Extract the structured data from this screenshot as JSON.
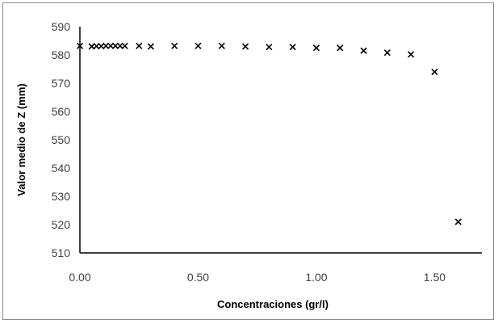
{
  "chart_data": {
    "type": "scatter",
    "title": "",
    "xlabel": "Concentraciones (gr/l)",
    "ylabel": "Valor medio de Z (mm)",
    "xlim": [
      0,
      1.7
    ],
    "ylim": [
      510,
      590
    ],
    "xticks": [
      "0.00",
      "0.50",
      "1.00",
      "1.50"
    ],
    "xtick_values": [
      0,
      0.5,
      1.0,
      1.5
    ],
    "yticks": [
      "510",
      "520",
      "530",
      "540",
      "550",
      "560",
      "570",
      "580",
      "590"
    ],
    "ytick_values": [
      510,
      520,
      530,
      540,
      550,
      560,
      570,
      580,
      590
    ],
    "marker": "x",
    "grid": false,
    "legend": "none",
    "colors": {
      "marker": "#000000",
      "axis": "#000000",
      "frame": "#8c8c8c"
    },
    "series": [
      {
        "x": [
          0.0,
          0.05,
          0.07,
          0.09,
          0.11,
          0.13,
          0.15,
          0.17,
          0.19,
          0.25,
          0.3,
          0.4,
          0.5,
          0.6,
          0.7,
          0.8,
          0.9,
          1.0,
          1.1,
          1.2,
          1.3,
          1.4,
          1.5,
          1.6
        ],
        "y": [
          583.2,
          583.0,
          583.1,
          583.1,
          583.2,
          583.2,
          583.2,
          583.2,
          583.2,
          583.2,
          583.0,
          583.2,
          583.2,
          583.2,
          583.0,
          582.8,
          582.8,
          582.5,
          582.5,
          581.5,
          580.8,
          580.2,
          574.0,
          521.0
        ]
      }
    ]
  }
}
